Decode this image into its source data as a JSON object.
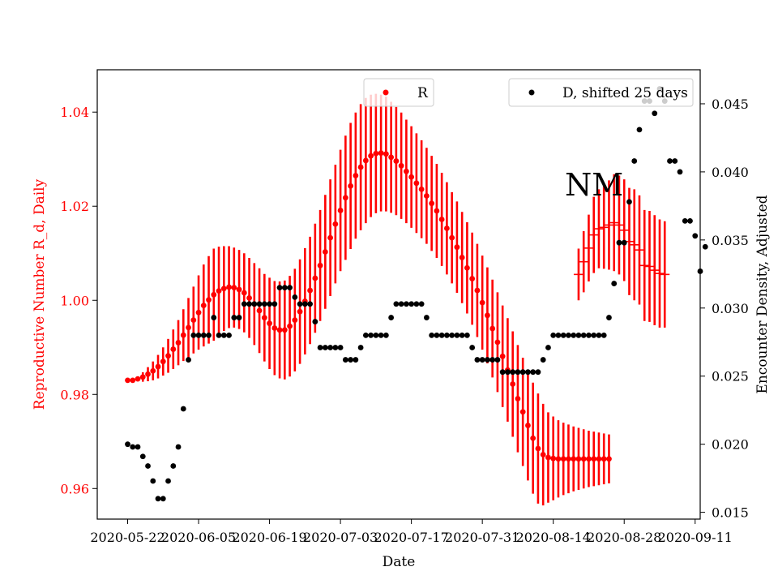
{
  "chart_data": {
    "type": "scatter",
    "xlabel": "Date",
    "ylabel_left": "Reproductive Number R_d, Daily",
    "ylabel_right": "Encounter Density, Adjusted",
    "annotation": "NM",
    "xlim": [
      "2020-05-16",
      "2020-09-12"
    ],
    "ylim_left": [
      0.9535,
      1.049
    ],
    "ylim_right": [
      0.0145,
      0.0475
    ],
    "x_ticks": [
      "2020-05-22",
      "2020-06-05",
      "2020-06-19",
      "2020-07-03",
      "2020-07-17",
      "2020-07-31",
      "2020-08-14",
      "2020-08-28",
      "2020-09-11"
    ],
    "y_ticks_left": [
      "0.96",
      "0.98",
      "1.00",
      "1.02",
      "1.04"
    ],
    "y_ticks_right": [
      "0.015",
      "0.020",
      "0.025",
      "0.030",
      "0.035",
      "0.040",
      "0.045"
    ],
    "series": [
      {
        "name": "R",
        "color": "#ff0000",
        "axis": "left",
        "style": "point-with-errorbar",
        "start_date": "2020-05-22",
        "values": [
          0.983,
          0.983,
          0.9833,
          0.9837,
          0.9843,
          0.985,
          0.9859,
          0.987,
          0.9882,
          0.9896,
          0.991,
          0.9926,
          0.9942,
          0.9958,
          0.9974,
          0.9989,
          1.0001,
          1.0012,
          1.002,
          1.0025,
          1.0028,
          1.0027,
          1.0023,
          1.0016,
          1.0005,
          0.9992,
          0.9978,
          0.9963,
          0.9951,
          0.9941,
          0.9937,
          0.9937,
          0.9945,
          0.9958,
          0.9976,
          0.9998,
          1.0021,
          1.0047,
          1.0074,
          1.0103,
          1.0133,
          1.0162,
          1.0191,
          1.0218,
          1.0243,
          1.0265,
          1.0283,
          1.0297,
          1.0307,
          1.0312,
          1.0313,
          1.0311,
          1.0304,
          1.0296,
          1.0286,
          1.0274,
          1.0262,
          1.0249,
          1.0236,
          1.0222,
          1.0206,
          1.019,
          1.0172,
          1.0153,
          1.0133,
          1.0113,
          1.0091,
          1.0069,
          1.0046,
          1.0021,
          0.9995,
          0.9968,
          0.994,
          0.9911,
          0.9881,
          0.9852,
          0.9822,
          0.9791,
          0.9763,
          0.9734,
          0.9707,
          0.9685,
          0.9672,
          0.9666,
          0.9664,
          0.9663,
          0.9663,
          0.9663,
          0.9663,
          0.9663,
          0.9663,
          0.9663,
          0.9663,
          0.9663,
          0.9663,
          0.9663
        ],
        "errors": [
          0.0,
          0.0,
          0.0005,
          0.001,
          0.0015,
          0.002,
          0.0025,
          0.003,
          0.0036,
          0.0042,
          0.0048,
          0.0055,
          0.0063,
          0.0071,
          0.0079,
          0.0087,
          0.0093,
          0.0098,
          0.0094,
          0.009,
          0.0087,
          0.0085,
          0.0084,
          0.0084,
          0.0085,
          0.0087,
          0.009,
          0.0093,
          0.0097,
          0.01,
          0.0103,
          0.0105,
          0.0107,
          0.0109,
          0.0111,
          0.0113,
          0.0114,
          0.0116,
          0.0118,
          0.0121,
          0.0124,
          0.0126,
          0.0129,
          0.0132,
          0.0134,
          0.0134,
          0.0134,
          0.0133,
          0.013,
          0.0127,
          0.0124,
          0.0122,
          0.0118,
          0.0115,
          0.0113,
          0.011,
          0.0108,
          0.0106,
          0.0104,
          0.0102,
          0.0101,
          0.01,
          0.0099,
          0.0098,
          0.0097,
          0.0097,
          0.0097,
          0.0097,
          0.0098,
          0.0099,
          0.01,
          0.0102,
          0.0104,
          0.0106,
          0.0108,
          0.011,
          0.0112,
          0.0114,
          0.0115,
          0.0117,
          0.0118,
          0.0117,
          0.0108,
          0.0096,
          0.0089,
          0.0082,
          0.0077,
          0.0073,
          0.0069,
          0.0066,
          0.0063,
          0.006,
          0.0058,
          0.0056,
          0.0054,
          0.0052
        ]
      },
      {
        "name": "",
        "color": "#ff0000",
        "axis": "left",
        "style": "errorbar-cap",
        "start_date": "2020-08-19",
        "values": [
          1.0055,
          1.0082,
          1.0111,
          1.0139,
          1.0152,
          1.0155,
          1.016,
          1.0165,
          1.016,
          1.0149,
          1.0125,
          1.0118,
          1.0107,
          1.0074,
          1.0072,
          1.0064,
          1.0057,
          1.0055
        ],
        "errors": [
          0.0055,
          0.0065,
          0.0071,
          0.0081,
          0.0084,
          0.0088,
          0.0095,
          0.0103,
          0.0105,
          0.0108,
          0.0114,
          0.0118,
          0.0116,
          0.0118,
          0.0118,
          0.0117,
          0.0115,
          0.0113
        ]
      },
      {
        "name": "D, shifted 25 days",
        "color": "#000000",
        "axis": "right",
        "style": "point",
        "start_date": "2020-05-22",
        "values": [
          0.02,
          0.0198,
          0.0198,
          0.0191,
          0.0184,
          0.0173,
          0.016,
          0.016,
          0.0173,
          0.0184,
          0.0198,
          0.0226,
          0.0262,
          0.028,
          0.028,
          0.028,
          0.028,
          0.0293,
          0.028,
          0.028,
          0.028,
          0.0293,
          0.0293,
          0.0303,
          0.0303,
          0.0303,
          0.0303,
          0.0303,
          0.0303,
          0.0303,
          0.0315,
          0.0315,
          0.0315,
          0.0308,
          0.0303,
          0.0303,
          0.0303,
          0.029,
          0.0271,
          0.0271,
          0.0271,
          0.0271,
          0.0271,
          0.0262,
          0.0262,
          0.0262,
          0.0271,
          0.028,
          0.028,
          0.028,
          0.028,
          0.028,
          0.0293,
          0.0303,
          0.0303,
          0.0303,
          0.0303,
          0.0303,
          0.0303,
          0.0293,
          0.028,
          0.028,
          0.028,
          0.028,
          0.028,
          0.028,
          0.028,
          0.028,
          0.0271,
          0.0262,
          0.0262,
          0.0262,
          0.0262,
          0.0262,
          0.0253,
          0.0253,
          0.0253,
          0.0253,
          0.0253,
          0.0253,
          0.0253,
          0.0253,
          0.0262,
          0.0271,
          0.028,
          0.028,
          0.028,
          0.028,
          0.028,
          0.028,
          0.028,
          0.028,
          0.028,
          0.028,
          0.028,
          0.0293,
          0.0318,
          0.0348,
          0.0348,
          0.0378,
          0.0408,
          0.0431,
          0.0452,
          0.0452,
          0.0443,
          0.0461,
          0.0452,
          0.0408,
          0.0408,
          0.04,
          0.0364,
          0.0364,
          0.0353,
          0.0327,
          0.0345
        ]
      }
    ]
  }
}
